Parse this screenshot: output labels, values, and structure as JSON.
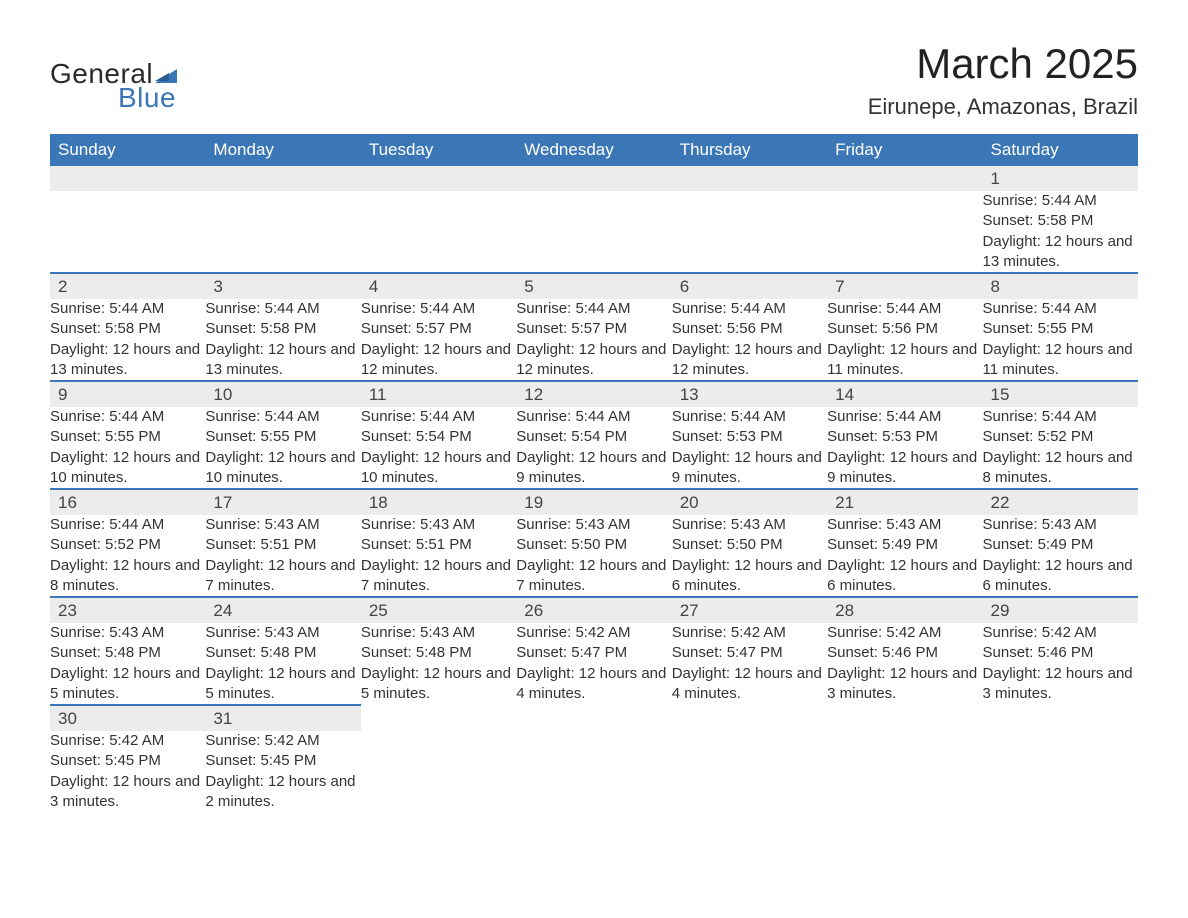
{
  "brand": {
    "name_part1": "General",
    "name_part2": "Blue",
    "text_color": "#2a2a2a",
    "accent_color": "#3b77b7"
  },
  "header": {
    "title": "March 2025",
    "location": "Eirunepe, Amazonas, Brazil",
    "title_fontsize": 42,
    "location_fontsize": 22
  },
  "calendar": {
    "type": "table",
    "header_bg": "#3b77b7",
    "header_fg": "#ffffff",
    "daynum_bg": "#ececec",
    "row_divider_color": "#3b77b7",
    "body_bg": "#ffffff",
    "text_color": "#333333",
    "body_fontsize": 15,
    "header_fontsize": 17,
    "columns": [
      "Sunday",
      "Monday",
      "Tuesday",
      "Wednesday",
      "Thursday",
      "Friday",
      "Saturday"
    ],
    "weeks": [
      [
        null,
        null,
        null,
        null,
        null,
        null,
        {
          "n": "1",
          "sunrise": "5:44 AM",
          "sunset": "5:58 PM",
          "daylight": "12 hours and 13 minutes."
        }
      ],
      [
        {
          "n": "2",
          "sunrise": "5:44 AM",
          "sunset": "5:58 PM",
          "daylight": "12 hours and 13 minutes."
        },
        {
          "n": "3",
          "sunrise": "5:44 AM",
          "sunset": "5:58 PM",
          "daylight": "12 hours and 13 minutes."
        },
        {
          "n": "4",
          "sunrise": "5:44 AM",
          "sunset": "5:57 PM",
          "daylight": "12 hours and 12 minutes."
        },
        {
          "n": "5",
          "sunrise": "5:44 AM",
          "sunset": "5:57 PM",
          "daylight": "12 hours and 12 minutes."
        },
        {
          "n": "6",
          "sunrise": "5:44 AM",
          "sunset": "5:56 PM",
          "daylight": "12 hours and 12 minutes."
        },
        {
          "n": "7",
          "sunrise": "5:44 AM",
          "sunset": "5:56 PM",
          "daylight": "12 hours and 11 minutes."
        },
        {
          "n": "8",
          "sunrise": "5:44 AM",
          "sunset": "5:55 PM",
          "daylight": "12 hours and 11 minutes."
        }
      ],
      [
        {
          "n": "9",
          "sunrise": "5:44 AM",
          "sunset": "5:55 PM",
          "daylight": "12 hours and 10 minutes."
        },
        {
          "n": "10",
          "sunrise": "5:44 AM",
          "sunset": "5:55 PM",
          "daylight": "12 hours and 10 minutes."
        },
        {
          "n": "11",
          "sunrise": "5:44 AM",
          "sunset": "5:54 PM",
          "daylight": "12 hours and 10 minutes."
        },
        {
          "n": "12",
          "sunrise": "5:44 AM",
          "sunset": "5:54 PM",
          "daylight": "12 hours and 9 minutes."
        },
        {
          "n": "13",
          "sunrise": "5:44 AM",
          "sunset": "5:53 PM",
          "daylight": "12 hours and 9 minutes."
        },
        {
          "n": "14",
          "sunrise": "5:44 AM",
          "sunset": "5:53 PM",
          "daylight": "12 hours and 9 minutes."
        },
        {
          "n": "15",
          "sunrise": "5:44 AM",
          "sunset": "5:52 PM",
          "daylight": "12 hours and 8 minutes."
        }
      ],
      [
        {
          "n": "16",
          "sunrise": "5:44 AM",
          "sunset": "5:52 PM",
          "daylight": "12 hours and 8 minutes."
        },
        {
          "n": "17",
          "sunrise": "5:43 AM",
          "sunset": "5:51 PM",
          "daylight": "12 hours and 7 minutes."
        },
        {
          "n": "18",
          "sunrise": "5:43 AM",
          "sunset": "5:51 PM",
          "daylight": "12 hours and 7 minutes."
        },
        {
          "n": "19",
          "sunrise": "5:43 AM",
          "sunset": "5:50 PM",
          "daylight": "12 hours and 7 minutes."
        },
        {
          "n": "20",
          "sunrise": "5:43 AM",
          "sunset": "5:50 PM",
          "daylight": "12 hours and 6 minutes."
        },
        {
          "n": "21",
          "sunrise": "5:43 AM",
          "sunset": "5:49 PM",
          "daylight": "12 hours and 6 minutes."
        },
        {
          "n": "22",
          "sunrise": "5:43 AM",
          "sunset": "5:49 PM",
          "daylight": "12 hours and 6 minutes."
        }
      ],
      [
        {
          "n": "23",
          "sunrise": "5:43 AM",
          "sunset": "5:48 PM",
          "daylight": "12 hours and 5 minutes."
        },
        {
          "n": "24",
          "sunrise": "5:43 AM",
          "sunset": "5:48 PM",
          "daylight": "12 hours and 5 minutes."
        },
        {
          "n": "25",
          "sunrise": "5:43 AM",
          "sunset": "5:48 PM",
          "daylight": "12 hours and 5 minutes."
        },
        {
          "n": "26",
          "sunrise": "5:42 AM",
          "sunset": "5:47 PM",
          "daylight": "12 hours and 4 minutes."
        },
        {
          "n": "27",
          "sunrise": "5:42 AM",
          "sunset": "5:47 PM",
          "daylight": "12 hours and 4 minutes."
        },
        {
          "n": "28",
          "sunrise": "5:42 AM",
          "sunset": "5:46 PM",
          "daylight": "12 hours and 3 minutes."
        },
        {
          "n": "29",
          "sunrise": "5:42 AM",
          "sunset": "5:46 PM",
          "daylight": "12 hours and 3 minutes."
        }
      ],
      [
        {
          "n": "30",
          "sunrise": "5:42 AM",
          "sunset": "5:45 PM",
          "daylight": "12 hours and 3 minutes."
        },
        {
          "n": "31",
          "sunrise": "5:42 AM",
          "sunset": "5:45 PM",
          "daylight": "12 hours and 2 minutes."
        },
        null,
        null,
        null,
        null,
        null
      ]
    ],
    "labels": {
      "sunrise_prefix": "Sunrise: ",
      "sunset_prefix": "Sunset: ",
      "daylight_prefix": "Daylight: "
    }
  }
}
